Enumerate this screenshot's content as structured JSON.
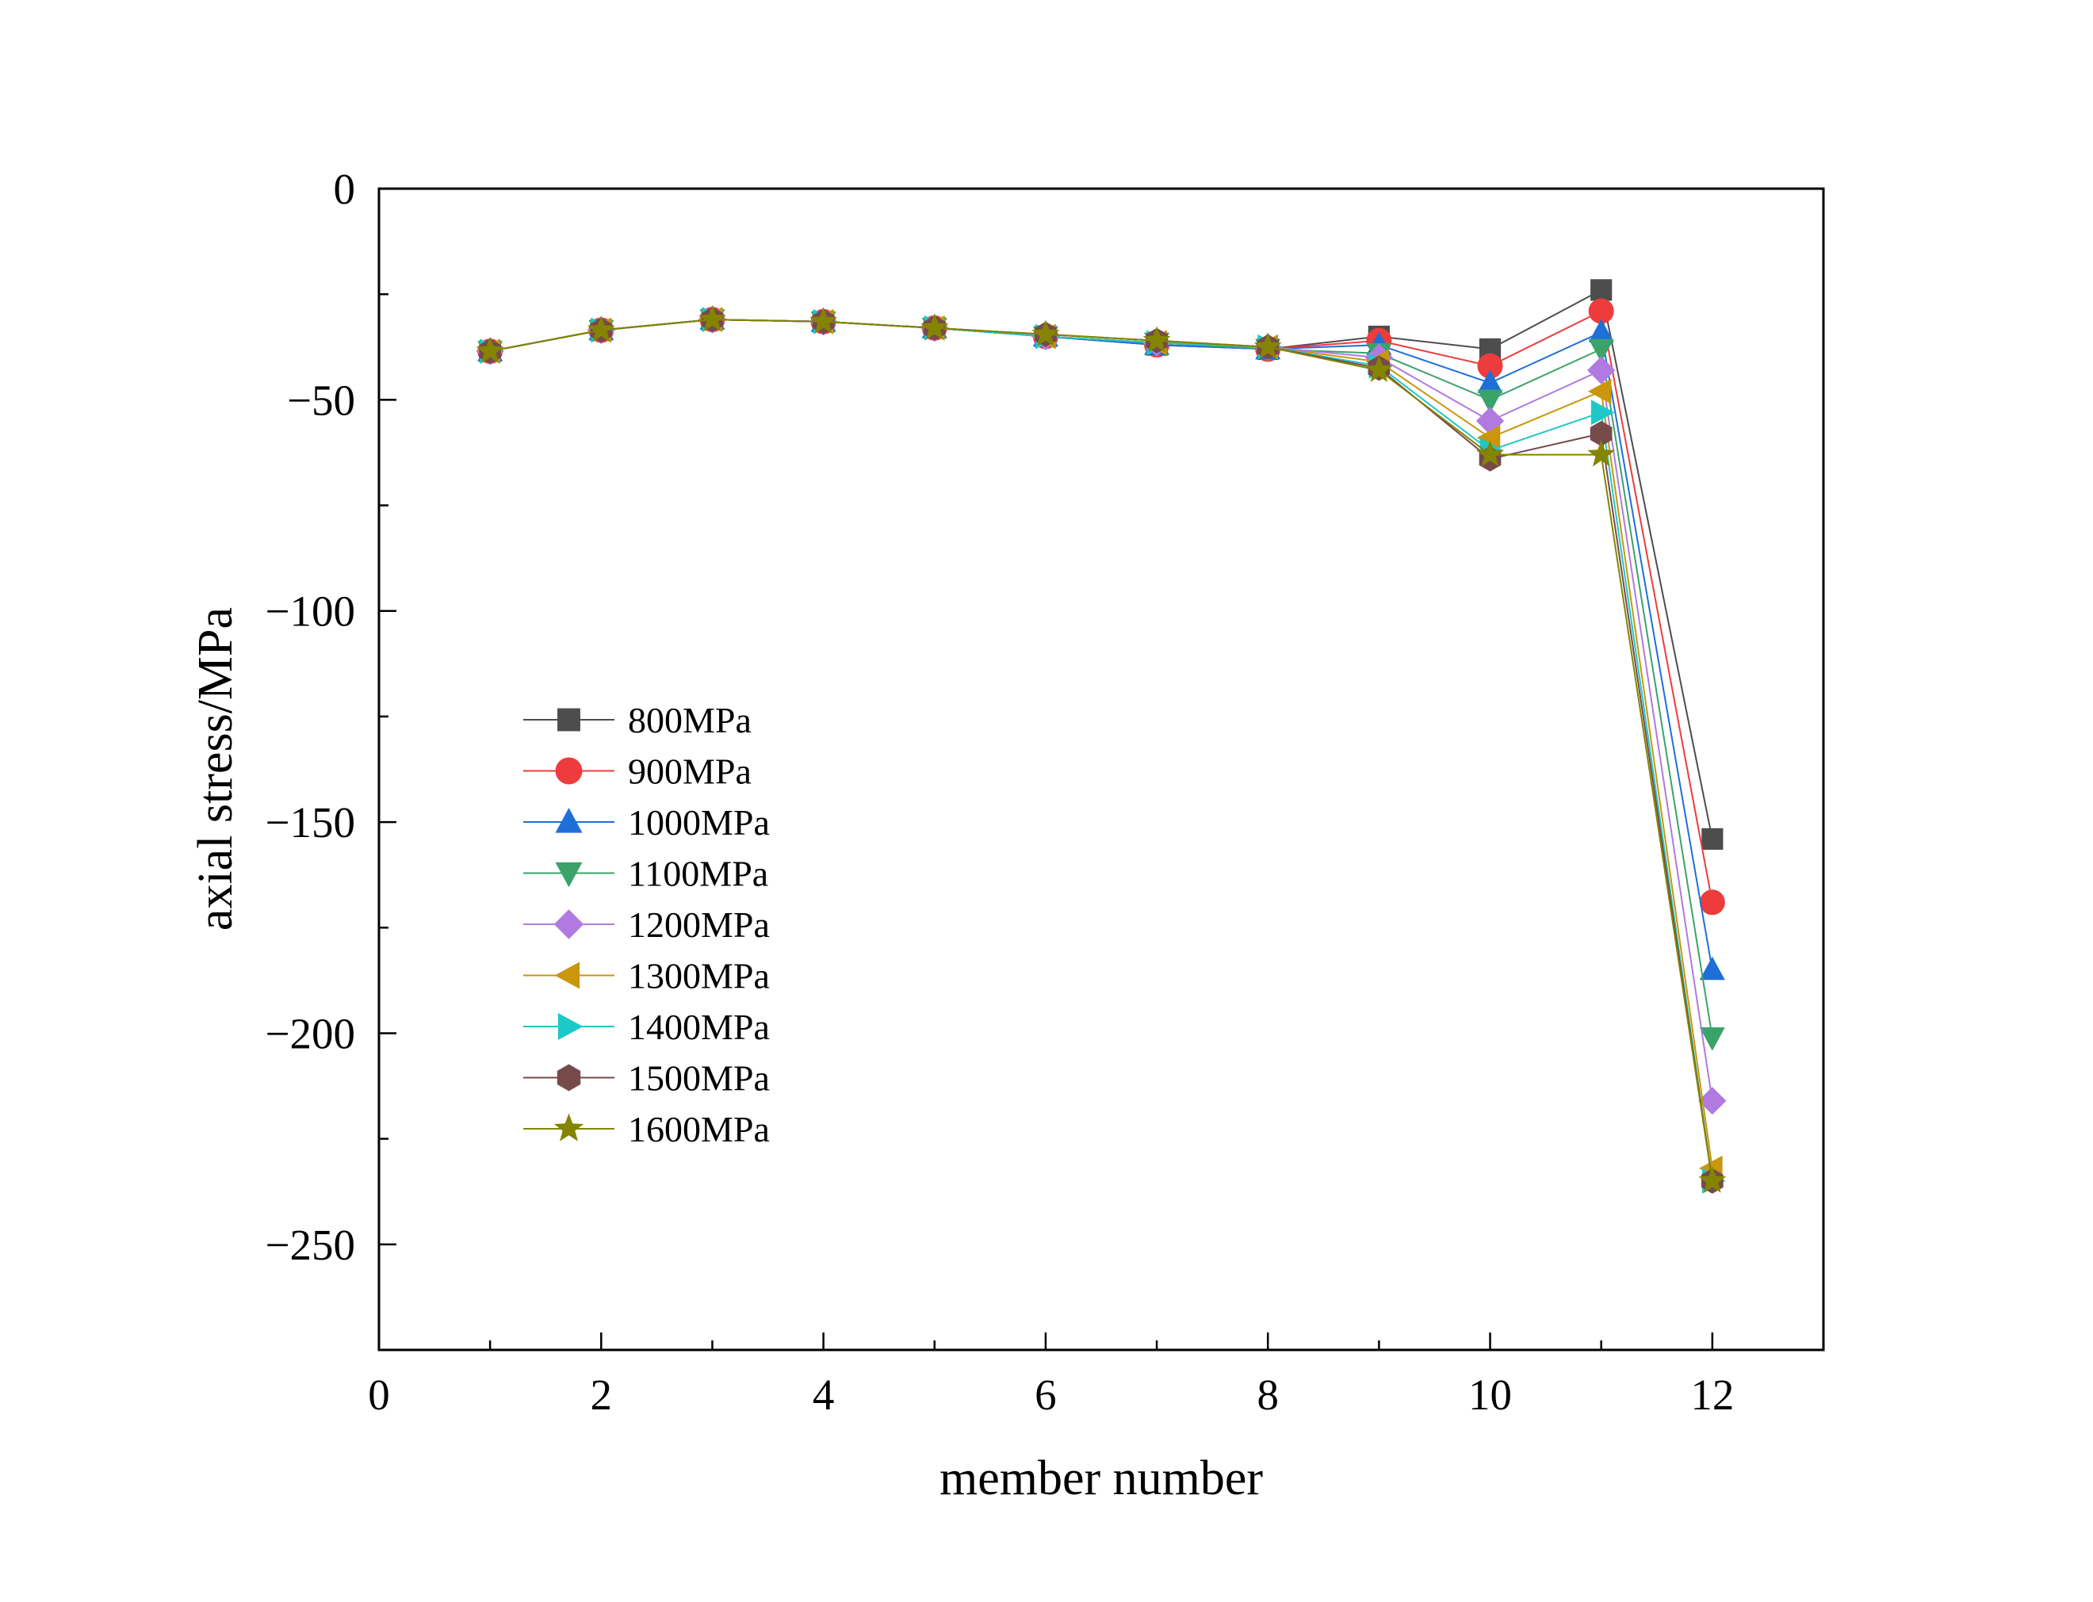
{
  "chart_data": {
    "type": "line",
    "title": "",
    "xlabel": "member number",
    "ylabel": "axial stress/MPa",
    "xlim": [
      0,
      13
    ],
    "ylim": [
      -275,
      0
    ],
    "xticks": [
      0,
      2,
      4,
      6,
      8,
      10,
      12
    ],
    "yticks": [
      0,
      -50,
      -100,
      -150,
      -200,
      -250
    ],
    "x": [
      1,
      2,
      3,
      4,
      5,
      6,
      7,
      8,
      9,
      10,
      11,
      12
    ],
    "legend_position": "center-left",
    "series": [
      {
        "name": "800MPa",
        "color": "#4d4d4d",
        "marker": "square",
        "values": [
          -38.5,
          -33.5,
          -31,
          -31.5,
          -33,
          -35,
          -37,
          -38,
          -35,
          -38,
          -24,
          -154
        ]
      },
      {
        "name": "900MPa",
        "color": "#ee3c3c",
        "marker": "circle",
        "values": [
          -38.5,
          -33.5,
          -31,
          -31.5,
          -33,
          -35,
          -37,
          -38,
          -36,
          -42,
          -29,
          -169
        ]
      },
      {
        "name": "1000MPa",
        "color": "#1f6fd8",
        "marker": "triangle-up",
        "values": [
          -38.5,
          -33.5,
          -31,
          -31.5,
          -33,
          -35,
          -37,
          -38,
          -37,
          -46,
          -34,
          -185
        ]
      },
      {
        "name": "1100MPa",
        "color": "#3aa36a",
        "marker": "triangle-down",
        "values": [
          -38.5,
          -33.5,
          -31,
          -31.5,
          -33,
          -35,
          -36.5,
          -38,
          -39,
          -50,
          -38,
          -201
        ]
      },
      {
        "name": "1200MPa",
        "color": "#b07ae0",
        "marker": "diamond",
        "values": [
          -38.5,
          -33.5,
          -31,
          -31.5,
          -33,
          -35,
          -36.5,
          -37.5,
          -40,
          -55,
          -43,
          -216
        ]
      },
      {
        "name": "1300MPa",
        "color": "#c9960c",
        "marker": "triangle-left",
        "values": [
          -38.5,
          -33.5,
          -31,
          -31.5,
          -33,
          -35,
          -36.5,
          -37.5,
          -41,
          -59,
          -48,
          -232
        ]
      },
      {
        "name": "1400MPa",
        "color": "#1ec8c8",
        "marker": "triangle-right",
        "values": [
          -38.5,
          -33.5,
          -31,
          -31.5,
          -33,
          -35,
          -36.5,
          -37.5,
          -42,
          -62,
          -53,
          -235
        ]
      },
      {
        "name": "1500MPa",
        "color": "#774a4a",
        "marker": "hexagon",
        "values": [
          -38.5,
          -33.5,
          -31,
          -31.5,
          -33,
          -34.5,
          -36,
          -37.5,
          -42.5,
          -64,
          -58,
          -235
        ]
      },
      {
        "name": "1600MPa",
        "color": "#848400",
        "marker": "star",
        "values": [
          -38.5,
          -33.5,
          -31,
          -31.5,
          -33,
          -34.5,
          -36,
          -37.5,
          -43,
          -63,
          -63,
          -235
        ]
      }
    ]
  }
}
